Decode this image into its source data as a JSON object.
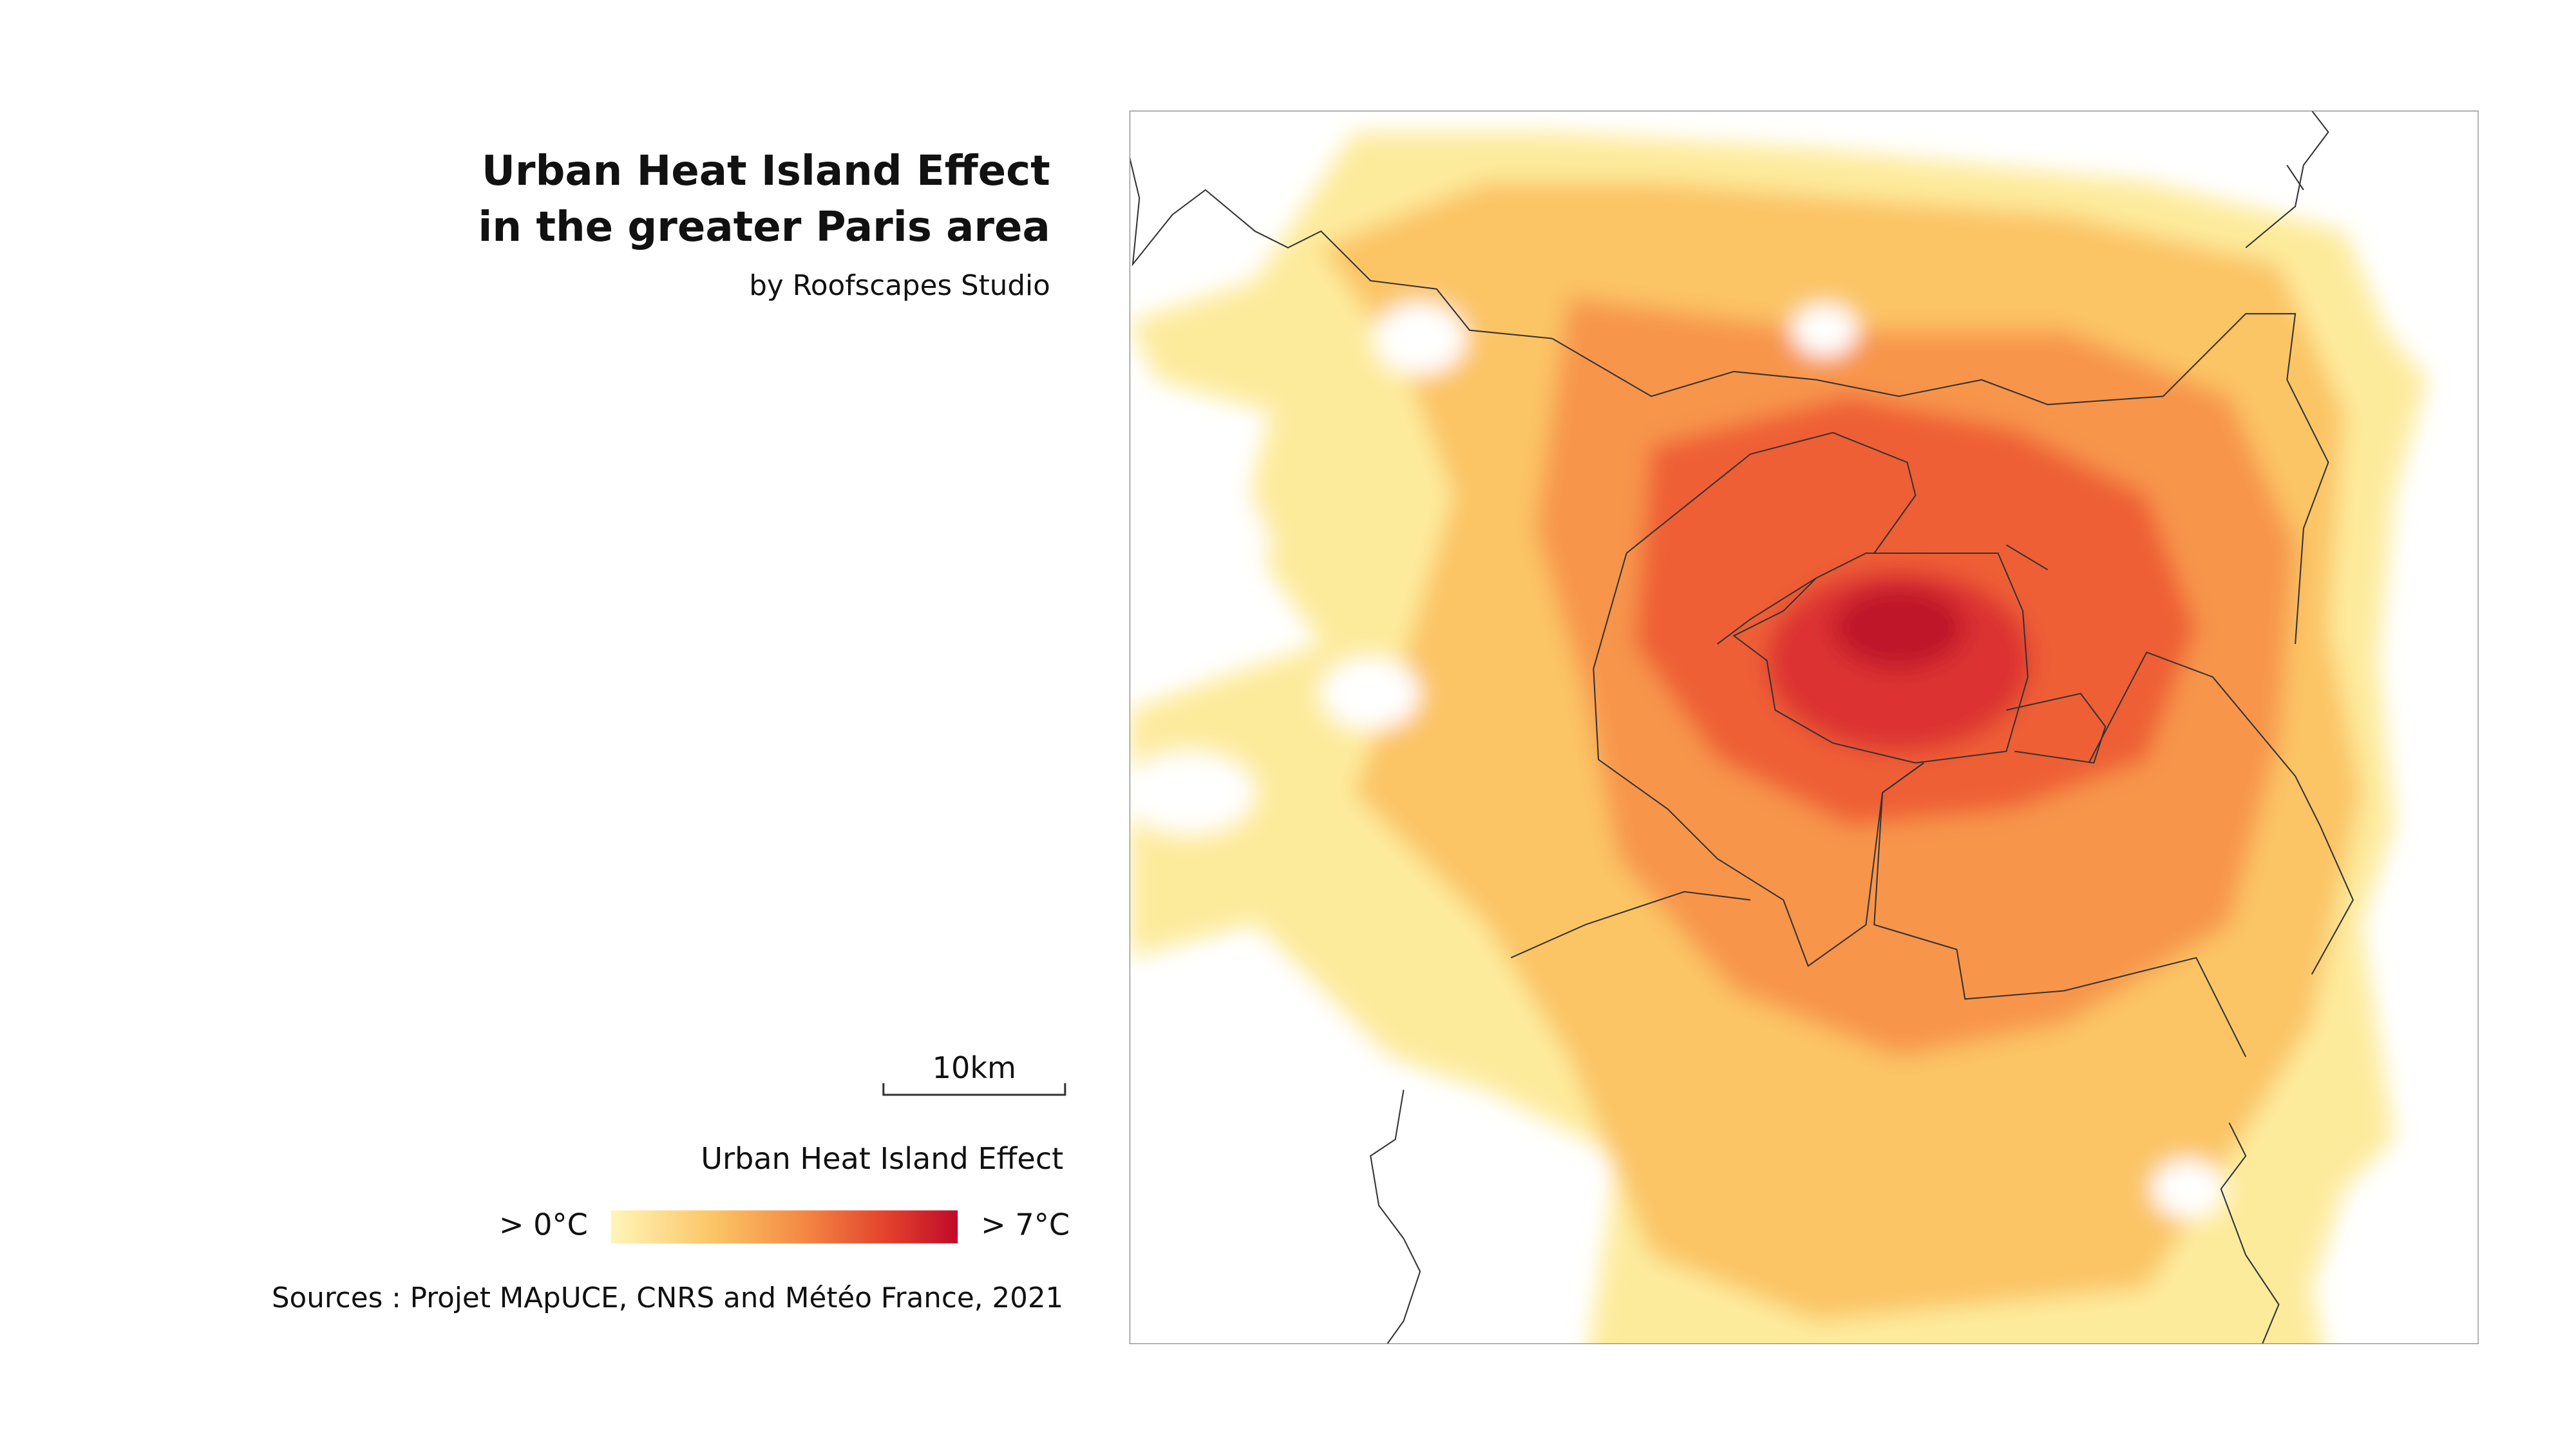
{
  "header": {
    "title": [
      "Urban Heat Island Effect",
      "in the greater Paris area"
    ],
    "subtitle": "by Roofscapes Studio"
  },
  "scale_bar": {
    "label": "10km"
  },
  "legend": {
    "title": "Urban Heat Island Effect",
    "min_label": "> 0°C",
    "max_label": "> 7°C"
  },
  "source": "Sources : Projet MApUCE, CNRS and Météo France, 2021"
}
